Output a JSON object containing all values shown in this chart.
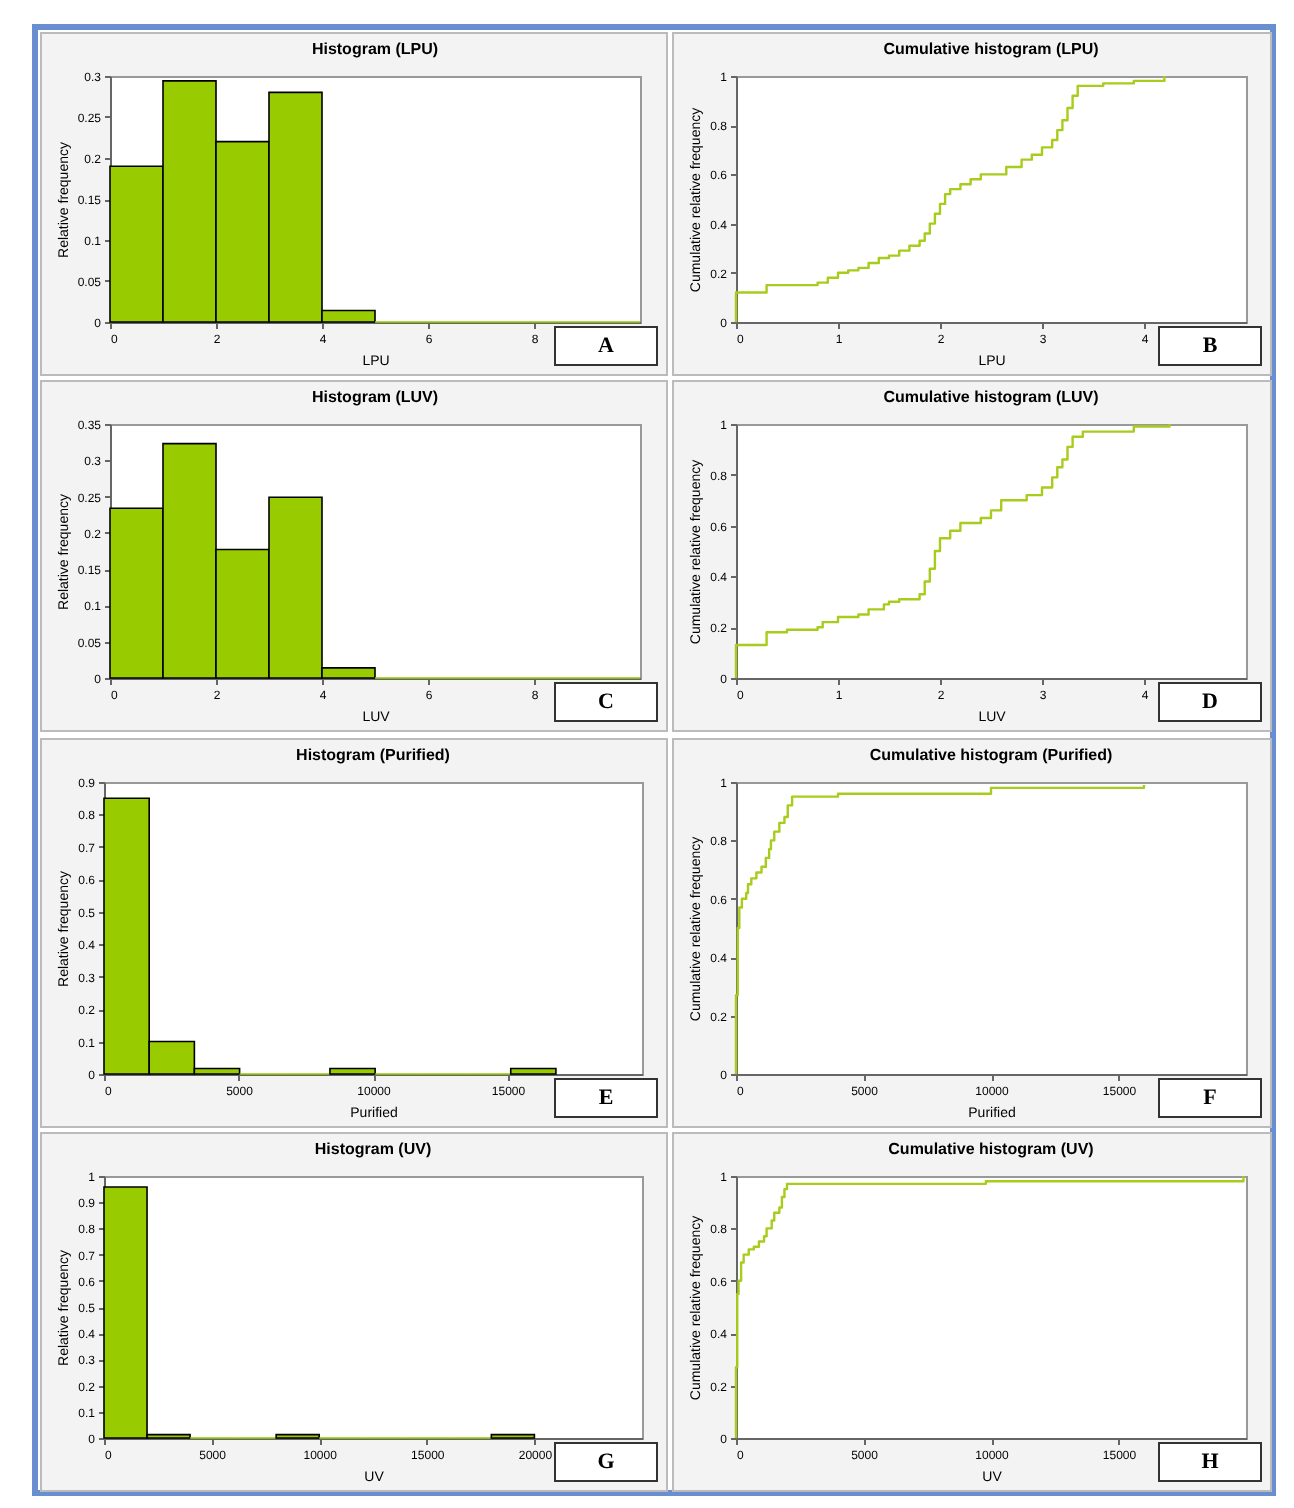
{
  "chart_data": [
    {
      "type": "histogram",
      "title": "Histogram (LPU)",
      "xlabel": "LPU",
      "ylabel": "Relative frequency",
      "color": "#99cc00",
      "bins": [
        0,
        1,
        2,
        3,
        4,
        5,
        6,
        7,
        8,
        9,
        10
      ],
      "values": [
        0.19,
        0.294,
        0.22,
        0.28,
        0.014,
        0,
        0,
        0,
        0,
        0
      ],
      "xlim": [
        0,
        10
      ],
      "xticks": [
        0,
        2,
        4,
        6,
        8
      ],
      "ylim": [
        0,
        0.3
      ],
      "yticks": [
        0,
        0.05,
        0.1,
        0.15,
        0.2,
        0.25,
        0.3
      ],
      "annotations": [
        "A"
      ]
    },
    {
      "type": "step",
      "title": "Cumulative histogram (LPU)",
      "xlabel": "LPU",
      "ylabel": "Cumulative relative frequency",
      "color": "#a8cc1c",
      "x": [
        0,
        0,
        0.3,
        0.8,
        0.9,
        1.0,
        1.1,
        1.2,
        1.3,
        1.4,
        1.5,
        1.6,
        1.7,
        1.8,
        1.85,
        1.9,
        1.95,
        2.0,
        2.05,
        2.1,
        2.2,
        2.3,
        2.4,
        2.65,
        2.8,
        2.9,
        3.0,
        3.1,
        3.15,
        3.2,
        3.25,
        3.3,
        3.35,
        3.6,
        3.9,
        4.2
      ],
      "values": [
        0,
        0.12,
        0.15,
        0.16,
        0.18,
        0.2,
        0.21,
        0.22,
        0.24,
        0.26,
        0.27,
        0.29,
        0.31,
        0.33,
        0.36,
        0.4,
        0.44,
        0.48,
        0.52,
        0.54,
        0.56,
        0.58,
        0.6,
        0.63,
        0.66,
        0.68,
        0.71,
        0.74,
        0.78,
        0.82,
        0.87,
        0.92,
        0.96,
        0.97,
        0.98,
        1.0
      ],
      "xlim": [
        0,
        5
      ],
      "xticks": [
        0,
        1,
        2,
        3,
        4
      ],
      "ylim": [
        0,
        1
      ],
      "yticks": [
        0,
        0.2,
        0.4,
        0.6,
        0.8,
        1
      ],
      "annotations": [
        "B"
      ]
    },
    {
      "type": "histogram",
      "title": "Histogram (LUV)",
      "xlabel": "LUV",
      "ylabel": "Relative frequency",
      "color": "#99cc00",
      "bins": [
        0,
        1,
        2,
        3,
        4,
        5,
        6,
        7,
        8,
        9,
        10
      ],
      "values": [
        0.234,
        0.323,
        0.177,
        0.249,
        0.014,
        0,
        0,
        0,
        0,
        0
      ],
      "xlim": [
        0,
        10
      ],
      "xticks": [
        0,
        2,
        4,
        6,
        8
      ],
      "ylim": [
        0,
        0.35
      ],
      "yticks": [
        0,
        0.05,
        0.1,
        0.15,
        0.2,
        0.25,
        0.3,
        0.35
      ],
      "annotations": [
        "C"
      ]
    },
    {
      "type": "step",
      "title": "Cumulative histogram (LUV)",
      "xlabel": "LUV",
      "ylabel": "Cumulative relative frequency",
      "color": "#a8cc1c",
      "x": [
        0,
        0,
        0.3,
        0.5,
        0.8,
        0.85,
        1.0,
        1.2,
        1.3,
        1.45,
        1.5,
        1.6,
        1.8,
        1.85,
        1.9,
        1.95,
        2.0,
        2.1,
        2.2,
        2.4,
        2.5,
        2.6,
        2.85,
        3.0,
        3.1,
        3.15,
        3.2,
        3.25,
        3.3,
        3.4,
        3.9,
        4.25
      ],
      "values": [
        0,
        0.13,
        0.18,
        0.19,
        0.2,
        0.22,
        0.24,
        0.25,
        0.27,
        0.29,
        0.3,
        0.31,
        0.33,
        0.38,
        0.43,
        0.5,
        0.55,
        0.58,
        0.61,
        0.63,
        0.66,
        0.7,
        0.72,
        0.75,
        0.79,
        0.83,
        0.86,
        0.91,
        0.95,
        0.97,
        0.99,
        1.0
      ],
      "xlim": [
        0,
        5
      ],
      "xticks": [
        0,
        1,
        2,
        3,
        4
      ],
      "ylim": [
        0,
        1
      ],
      "yticks": [
        0,
        0.2,
        0.4,
        0.6,
        0.8,
        1
      ],
      "annotations": [
        "D"
      ]
    },
    {
      "type": "histogram",
      "title": "Histogram (Purified)",
      "xlabel": "Purified",
      "ylabel": "Relative frequency",
      "color": "#99cc00",
      "bins": [
        0,
        1680,
        3360,
        5040,
        6720,
        8400,
        10080,
        11760,
        13440,
        15120,
        16800
      ],
      "values": [
        0.85,
        0.1,
        0.017,
        0,
        0,
        0.017,
        0,
        0,
        0,
        0.017
      ],
      "xlim": [
        0,
        20000
      ],
      "xticks": [
        0,
        5000,
        10000,
        15000
      ],
      "ylim": [
        0,
        0.9
      ],
      "yticks": [
        0,
        0.1,
        0.2,
        0.3,
        0.4,
        0.5,
        0.6,
        0.7,
        0.8,
        0.9
      ],
      "annotations": [
        "E"
      ]
    },
    {
      "type": "step",
      "title": "Cumulative histogram (Purified)",
      "xlabel": "Purified",
      "ylabel": "Cumulative relative frequency",
      "color": "#a8cc1c",
      "x": [
        0,
        0,
        70,
        130,
        230,
        400,
        470,
        600,
        800,
        1000,
        1170,
        1300,
        1370,
        1500,
        1700,
        1900,
        2030,
        2200,
        4000,
        10000,
        16000
      ],
      "values": [
        0,
        0.27,
        0.5,
        0.57,
        0.6,
        0.62,
        0.65,
        0.67,
        0.69,
        0.71,
        0.74,
        0.77,
        0.8,
        0.83,
        0.86,
        0.88,
        0.92,
        0.95,
        0.96,
        0.98,
        0.99
      ],
      "xlim": [
        0,
        20000
      ],
      "xticks": [
        0,
        5000,
        10000,
        15000
      ],
      "ylim": [
        0,
        1
      ],
      "yticks": [
        0,
        0.2,
        0.4,
        0.6,
        0.8,
        1
      ],
      "annotations": [
        "F"
      ]
    },
    {
      "type": "histogram",
      "title": "Histogram (UV)",
      "xlabel": "UV",
      "ylabel": "Relative frequency",
      "color": "#99cc00",
      "bins": [
        0,
        2000,
        4000,
        6000,
        8000,
        10000,
        12000,
        14000,
        16000,
        18000,
        20000
      ],
      "values": [
        0.958,
        0.013,
        0,
        0,
        0.013,
        0,
        0,
        0,
        0,
        0.013
      ],
      "xlim": [
        0,
        25000
      ],
      "xticks": [
        0,
        5000,
        10000,
        15000,
        20000
      ],
      "ylim": [
        0,
        1
      ],
      "yticks": [
        0,
        0.1,
        0.2,
        0.3,
        0.4,
        0.5,
        0.6,
        0.7,
        0.8,
        0.9,
        1
      ],
      "annotations": [
        "G"
      ]
    },
    {
      "type": "step",
      "title": "Cumulative histogram (UV)",
      "xlabel": "UV",
      "ylabel": "Cumulative relative frequency",
      "color": "#a8cc1c",
      "x": [
        0,
        0,
        50,
        100,
        200,
        300,
        500,
        700,
        900,
        1100,
        1200,
        1400,
        1500,
        1700,
        1800,
        1900,
        2000,
        9800,
        19900
      ],
      "values": [
        0,
        0.27,
        0.55,
        0.6,
        0.67,
        0.7,
        0.72,
        0.73,
        0.75,
        0.77,
        0.8,
        0.83,
        0.86,
        0.88,
        0.92,
        0.95,
        0.97,
        0.98,
        1.0
      ],
      "xlim": [
        0,
        20000
      ],
      "xticks": [
        0,
        5000,
        10000,
        15000
      ],
      "ylim": [
        0,
        1
      ],
      "yticks": [
        0,
        0.2,
        0.4,
        0.6,
        0.8,
        1
      ],
      "annotations": [
        "H"
      ]
    }
  ]
}
